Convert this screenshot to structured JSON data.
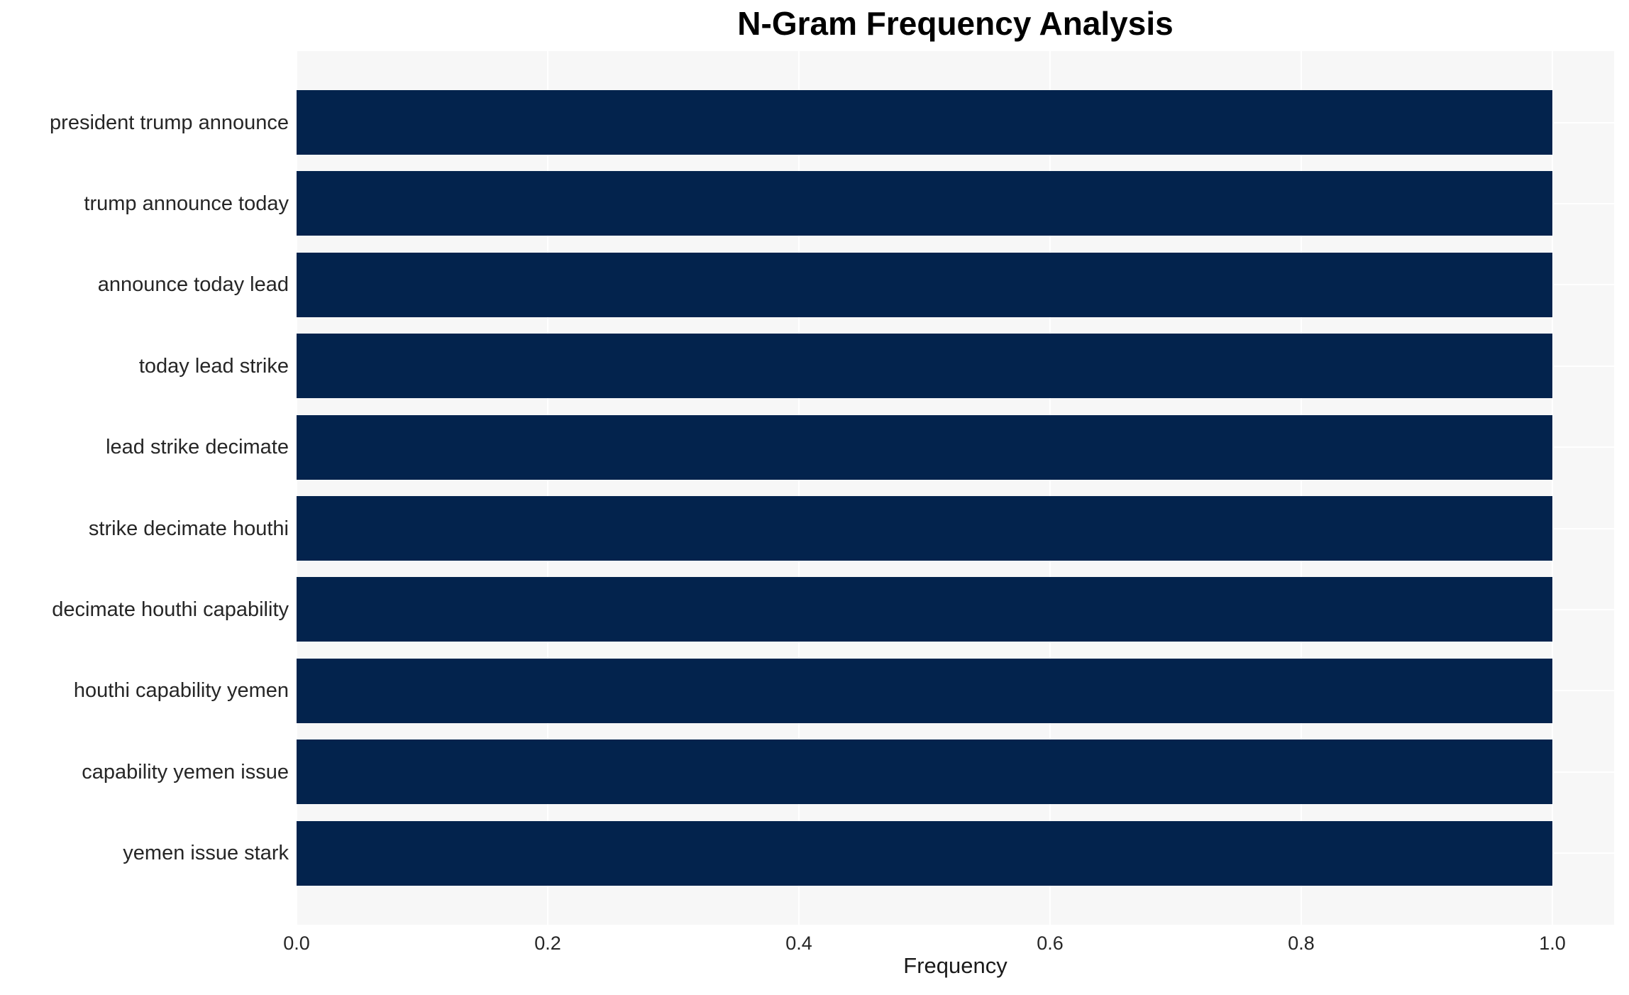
{
  "chart_data": {
    "type": "bar",
    "orientation": "horizontal",
    "title": "N-Gram Frequency Analysis",
    "xlabel": "Frequency",
    "ylabel": "",
    "categories": [
      "president trump announce",
      "trump announce today",
      "announce today lead",
      "today lead strike",
      "lead strike decimate",
      "strike decimate houthi",
      "decimate houthi capability",
      "houthi capability yemen",
      "capability yemen issue",
      "yemen issue stark"
    ],
    "values": [
      1.0,
      1.0,
      1.0,
      1.0,
      1.0,
      1.0,
      1.0,
      1.0,
      1.0,
      1.0
    ],
    "xticks": {
      "labels": [
        "0.0",
        "0.2",
        "0.4",
        "0.6",
        "0.8",
        "1.0"
      ],
      "values": [
        0.0,
        0.2,
        0.4,
        0.6,
        0.8,
        1.0
      ]
    },
    "xlim": [
      0.0,
      1.049
    ],
    "grid": true,
    "legend": false,
    "colors": {
      "bar": "#03234d",
      "plot_background": "#f7f7f7",
      "figure_background": "#ffffff",
      "gridline": "#ffffff",
      "title_text": "#000000",
      "tick_text": "#262626"
    }
  }
}
